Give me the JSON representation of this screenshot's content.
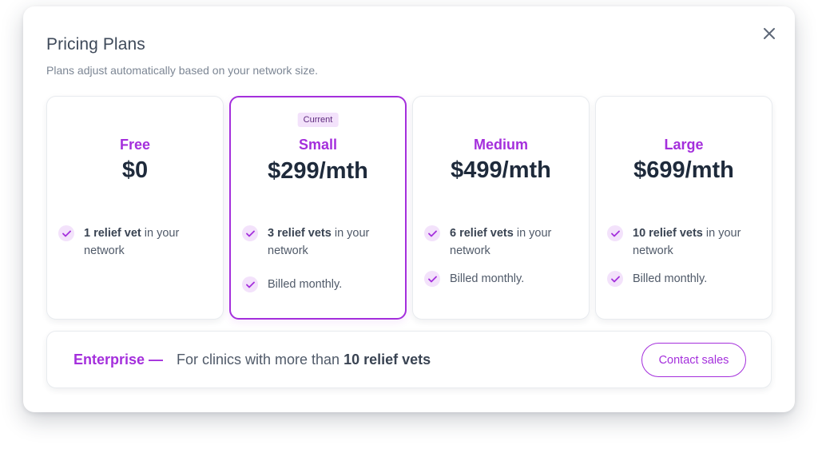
{
  "header": {
    "title": "Pricing Plans",
    "subtitle": "Plans adjust automatically based on your network size."
  },
  "close_icon": "close-icon",
  "plans": [
    {
      "name": "Free",
      "price": "$0",
      "features": [
        {
          "bold": "1 relief vet",
          "rest": " in your network"
        }
      ]
    },
    {
      "badge": "Current",
      "name": "Small",
      "price": "$299/mth",
      "features": [
        {
          "bold": "3 relief vets",
          "rest": " in your network"
        },
        {
          "bold": "",
          "rest": "Billed monthly."
        }
      ]
    },
    {
      "name": "Medium",
      "price": "$499/mth",
      "features": [
        {
          "bold": "6 relief vets",
          "rest": " in your network"
        },
        {
          "bold": "",
          "rest": "Billed monthly."
        }
      ]
    },
    {
      "name": "Large",
      "price": "$699/mth",
      "features": [
        {
          "bold": "10 relief vets",
          "rest": " in your network"
        },
        {
          "bold": "",
          "rest": "Billed monthly."
        }
      ]
    }
  ],
  "enterprise": {
    "label": "Enterprise —",
    "desc_prefix": "For clinics with more than ",
    "desc_bold": "10 relief vets",
    "button_label": "Contact sales"
  },
  "colors": {
    "accent": "#a42fdc",
    "accent_soft": "#f3e2fb",
    "heading": "#1e2a3b",
    "body_text": "#505a69"
  }
}
